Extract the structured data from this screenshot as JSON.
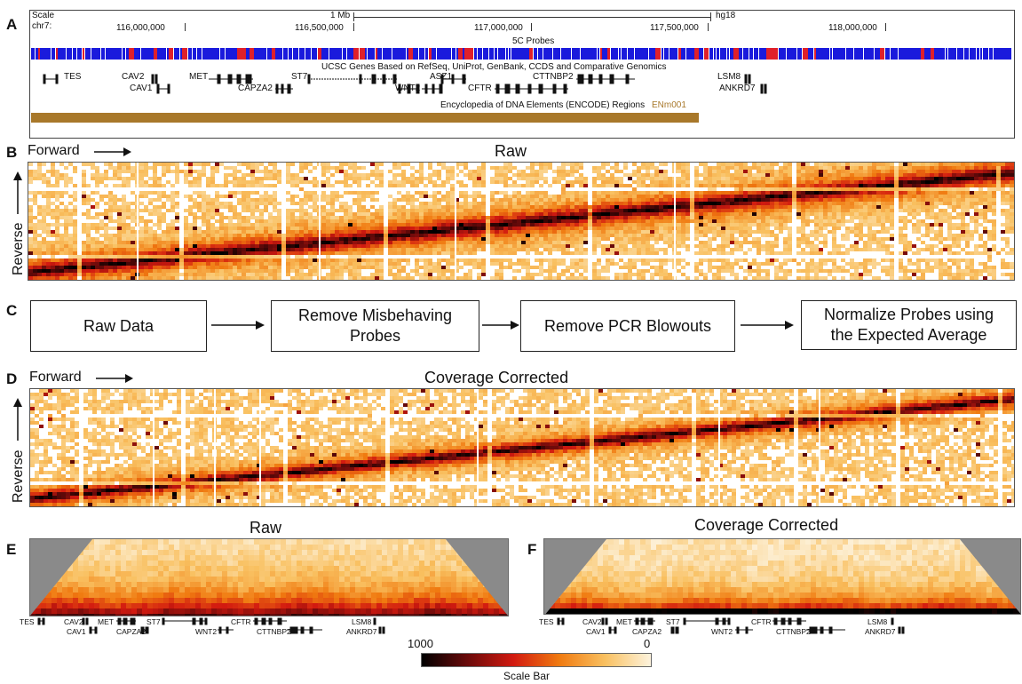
{
  "panels": {
    "A": {
      "letter": "A",
      "scale_label": "Scale",
      "chrom_label": "chr7:",
      "scalebar_label": "1 Mb",
      "assembly": "hg18",
      "ticks": [
        "116,000,000",
        "116,500,000",
        "117,000,000",
        "117,500,000",
        "118,000,000"
      ],
      "track_5c": "5C Probes",
      "track_genes": "UCSC Genes Based on RefSeq, UniProt, GenBank, CCDS and Comparative Genomics",
      "genes_row1": [
        "TES",
        "CAV2",
        "MET",
        "ST7",
        "ASZ1",
        "CTTNBP2",
        "LSM8"
      ],
      "genes_row2": [
        "CAV1",
        "CAPZA2",
        "WNT2",
        "CFTR",
        "ANKRD7"
      ],
      "track_encode": "Encyclopedia of DNA Elements (ENCODE) Regions",
      "encode_region": "ENm001",
      "colors": {
        "probe_blue": "#1a1adc",
        "probe_red": "#e0202a",
        "encode_bar": "#a8782a",
        "encode_text": "#a8782a"
      }
    },
    "B": {
      "letter": "B",
      "title": "Raw",
      "x_label": "Forward",
      "y_label": "Reverse"
    },
    "C": {
      "letter": "C",
      "steps": [
        "Raw Data",
        "Remove Misbehaving Probes",
        "Remove PCR Blowouts",
        "Normalize Probes using the Expected Average"
      ]
    },
    "D": {
      "letter": "D",
      "title": "Coverage Corrected",
      "x_label": "Forward",
      "y_label": "Reverse"
    },
    "E": {
      "letter": "E",
      "title": "Raw",
      "genes_row1": [
        "TES",
        "CAV2",
        "MET",
        "ST7",
        "CFTR",
        "LSM8"
      ],
      "genes_row2": [
        "CAV1",
        "CAPZA2",
        "WNT2",
        "CTTNBP2",
        "ANKRD7"
      ]
    },
    "F": {
      "letter": "F",
      "title": "Coverage Corrected",
      "genes_row1": [
        "TES",
        "CAV2",
        "MET",
        "ST7",
        "CFTR",
        "LSM8"
      ],
      "genes_row2": [
        "CAV1",
        "CAPZA2",
        "WNT2",
        "CTTNBP2",
        "ANKRD7"
      ]
    }
  },
  "scale_bar": {
    "max_label": "1000",
    "min_label": "0",
    "caption": "Scale Bar",
    "gradient": [
      "#000000",
      "#6a0a0a",
      "#d21a10",
      "#f07a10",
      "#f9c060",
      "#fdf3dd"
    ]
  }
}
